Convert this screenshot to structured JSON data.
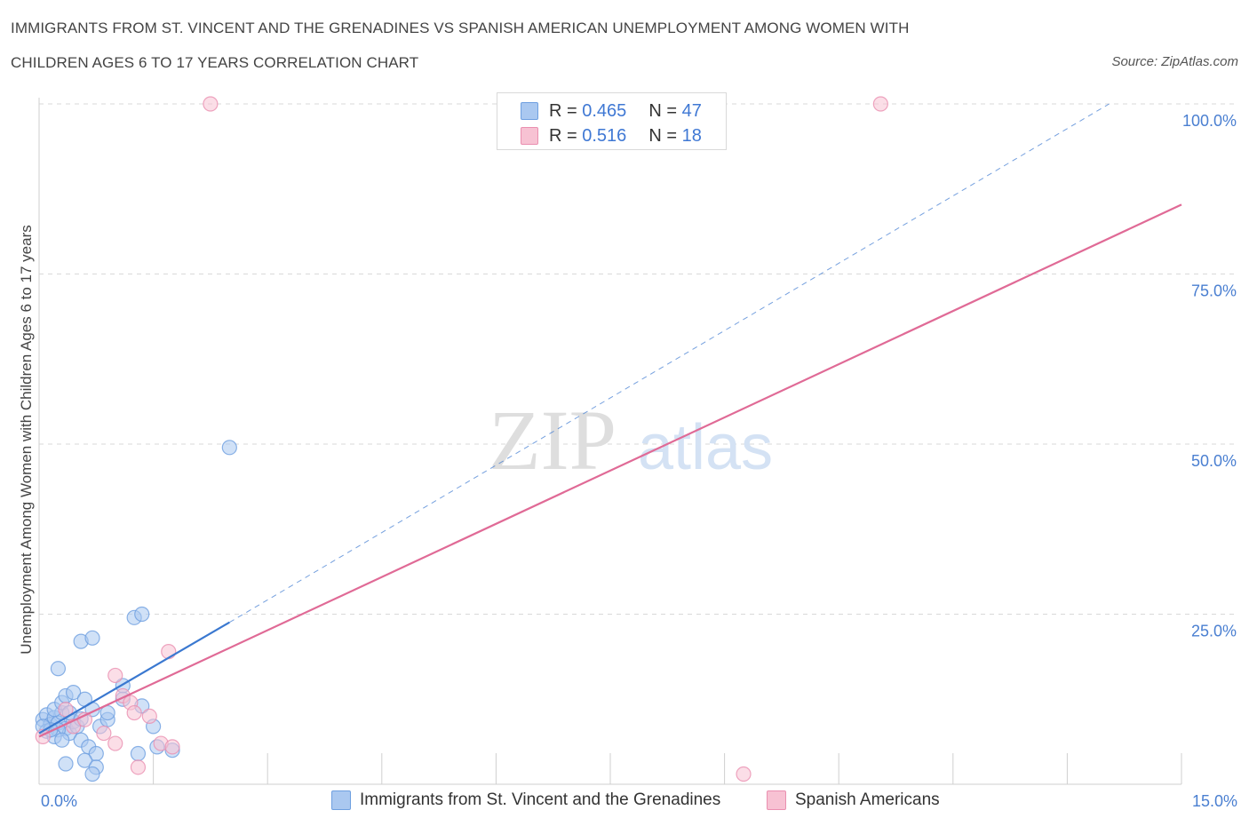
{
  "title": {
    "line1": "IMMIGRANTS FROM ST. VINCENT AND THE GRENADINES VS SPANISH AMERICAN UNEMPLOYMENT AMONG WOMEN WITH",
    "line2": "CHILDREN AGES 6 TO 17 YEARS CORRELATION CHART"
  },
  "source": "Source: ZipAtlas.com",
  "watermark": {
    "zip": "ZIP",
    "atlas": "atlas"
  },
  "legend": {
    "series1": {
      "r_label": "R =",
      "r_value": "0.465",
      "n_label": "N =",
      "n_value": "47"
    },
    "series2": {
      "r_label": "R =",
      "r_value": "0.516",
      "n_label": "N =",
      "n_value": "18"
    }
  },
  "colors": {
    "series1_fill": "#aac8f0",
    "series1_stroke": "#6e9fe0",
    "series1_line": "#3a78d0",
    "series2_fill": "#f7c2d3",
    "series2_stroke": "#ea8fb0",
    "series2_line": "#e06a96",
    "grid": "#d8d8d8",
    "tick_text": "#4a7fd1"
  },
  "chart_data": {
    "type": "scatter",
    "title": "IMMIGRANTS FROM ST. VINCENT AND THE GRENADINES VS SPANISH AMERICAN UNEMPLOYMENT AMONG WOMEN WITH CHILDREN AGES 6 TO 17 YEARS CORRELATION CHART",
    "xlabel": "",
    "ylabel": "Unemployment Among Women with Children Ages 6 to 17 years",
    "xlim": [
      0,
      15
    ],
    "ylim": [
      0,
      100
    ],
    "x_tick_labels": [
      "0.0%",
      "15.0%"
    ],
    "y_ticks": [
      25,
      50,
      75,
      100
    ],
    "y_tick_labels": [
      "25.0%",
      "50.0%",
      "75.0%",
      "100.0%"
    ],
    "grid": true,
    "legend_position": "top-center",
    "series": [
      {
        "name": "Immigrants from St. Vincent and the Grenadines",
        "color": "#aac8f0",
        "points": [
          [
            0.05,
            9.5
          ],
          [
            0.1,
            10.2
          ],
          [
            0.15,
            8.8
          ],
          [
            0.2,
            9.8
          ],
          [
            0.25,
            9.0
          ],
          [
            0.3,
            10.5
          ],
          [
            0.35,
            8.2
          ],
          [
            0.4,
            7.5
          ],
          [
            0.45,
            9.2
          ],
          [
            0.5,
            8.5
          ],
          [
            0.2,
            11.0
          ],
          [
            0.3,
            12.0
          ],
          [
            0.1,
            7.8
          ],
          [
            0.4,
            10.5
          ],
          [
            0.55,
            9.6
          ],
          [
            0.25,
            8.0
          ],
          [
            0.35,
            13.0
          ],
          [
            0.45,
            13.5
          ],
          [
            0.25,
            17.0
          ],
          [
            0.6,
            12.5
          ],
          [
            0.7,
            11.0
          ],
          [
            0.8,
            8.5
          ],
          [
            0.9,
            9.5
          ],
          [
            0.55,
            6.5
          ],
          [
            0.65,
            5.5
          ],
          [
            0.75,
            4.5
          ],
          [
            0.6,
            3.5
          ],
          [
            0.9,
            10.5
          ],
          [
            1.1,
            12.5
          ],
          [
            1.35,
            11.5
          ],
          [
            1.5,
            8.5
          ],
          [
            1.55,
            5.5
          ],
          [
            1.75,
            5.0
          ],
          [
            1.3,
            4.5
          ],
          [
            0.75,
            2.5
          ],
          [
            0.7,
            1.5
          ],
          [
            0.35,
            3.0
          ],
          [
            0.55,
            21.0
          ],
          [
            0.7,
            21.5
          ],
          [
            1.25,
            24.5
          ],
          [
            1.35,
            25.0
          ],
          [
            1.1,
            14.5
          ],
          [
            0.2,
            7.0
          ],
          [
            0.15,
            8.0
          ],
          [
            0.05,
            8.5
          ],
          [
            0.3,
            6.5
          ],
          [
            2.5,
            49.5
          ]
        ]
      },
      {
        "name": "Spanish Americans",
        "color": "#f7c2d3",
        "points": [
          [
            0.05,
            7.0
          ],
          [
            0.35,
            11.0
          ],
          [
            0.45,
            8.5
          ],
          [
            0.6,
            9.5
          ],
          [
            0.85,
            7.5
          ],
          [
            1.0,
            6.0
          ],
          [
            1.1,
            13.0
          ],
          [
            1.2,
            12.0
          ],
          [
            1.25,
            10.5
          ],
          [
            1.45,
            10.0
          ],
          [
            1.6,
            6.0
          ],
          [
            1.75,
            5.5
          ],
          [
            1.7,
            19.5
          ],
          [
            1.0,
            16.0
          ],
          [
            1.3,
            2.5
          ],
          [
            9.25,
            1.5
          ],
          [
            2.25,
            100.0
          ],
          [
            11.05,
            100.0
          ]
        ]
      }
    ],
    "trend_lines": [
      {
        "series": "Immigrants from St. Vincent and the Grenadines",
        "style": "solid",
        "from": [
          0,
          7.5
        ],
        "to": [
          2.5,
          23.8
        ]
      },
      {
        "series": "Immigrants from St. Vincent and the Grenadines",
        "style": "dashed",
        "from": [
          2.5,
          23.8
        ],
        "to": [
          14.05,
          100.0
        ]
      },
      {
        "series": "Spanish Americans",
        "style": "solid",
        "from": [
          0,
          7.0
        ],
        "to": [
          15.0,
          85.2
        ]
      }
    ]
  },
  "bottom_legend": {
    "item1": "Immigrants from St. Vincent and the Grenadines",
    "item2": "Spanish Americans"
  }
}
